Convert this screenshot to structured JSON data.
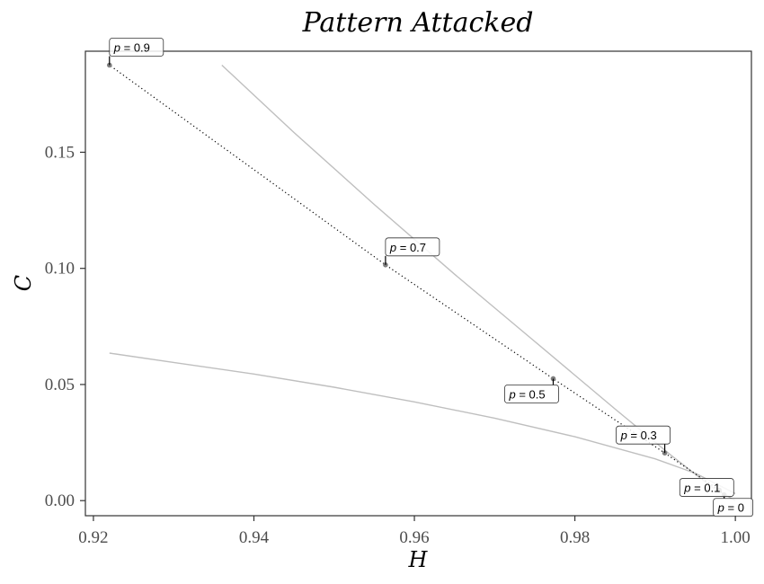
{
  "chart_data": {
    "type": "scatter",
    "title": "Pattern Attacked",
    "xlabel": "H",
    "ylabel": "C",
    "xlim": [
      0.919,
      1.002
    ],
    "ylim": [
      -0.0065,
      0.1935
    ],
    "x_ticks": [
      0.92,
      0.94,
      0.96,
      0.98,
      1.0
    ],
    "x_tick_labels": [
      "0.92",
      "0.94",
      "0.96",
      "0.98",
      "1.00"
    ],
    "y_ticks": [
      0.0,
      0.05,
      0.1,
      0.15
    ],
    "y_tick_labels": [
      "0.00",
      "0.05",
      "0.10",
      "0.15"
    ],
    "grid": false,
    "series": [
      {
        "line_style": "dotted",
        "point_color": "#7f7f7f",
        "points": [
          {
            "x": 0.9986,
            "y": 0.0025,
            "label_var": "p",
            "label_value": "0",
            "label_position": "below-left"
          },
          {
            "x": 0.998,
            "y": 0.0045,
            "label_var": "p",
            "label_value": "0.1",
            "label_position": "left"
          },
          {
            "x": 0.9912,
            "y": 0.0205,
            "label_var": "p",
            "label_value": "0.3",
            "label_position": "upper-left"
          },
          {
            "x": 0.9773,
            "y": 0.0525,
            "label_var": "p",
            "label_value": "0.5",
            "label_position": "lower-left"
          },
          {
            "x": 0.9564,
            "y": 0.1015,
            "label_var": "p",
            "label_value": "0.7",
            "label_position": "upper-right"
          },
          {
            "x": 0.922,
            "y": 0.1875,
            "label_var": "p",
            "label_value": "0.9",
            "label_position": "upper-right"
          }
        ]
      }
    ],
    "bounds": [
      {
        "color": "#bfbfbf",
        "x": [
          0.936,
          0.945,
          0.955,
          0.965,
          0.975,
          0.985,
          0.992,
          0.997,
          1.0
        ],
        "y": [
          0.1875,
          0.1585,
          0.1275,
          0.0975,
          0.0685,
          0.0395,
          0.0195,
          0.006,
          0.0
        ]
      },
      {
        "color": "#bfbfbf",
        "x": [
          0.922,
          0.93,
          0.94,
          0.95,
          0.96,
          0.97,
          0.98,
          0.99,
          0.995,
          1.0
        ],
        "y": [
          0.0635,
          0.0595,
          0.0545,
          0.0488,
          0.0425,
          0.0355,
          0.0275,
          0.018,
          0.0118,
          0.003
        ]
      }
    ]
  }
}
